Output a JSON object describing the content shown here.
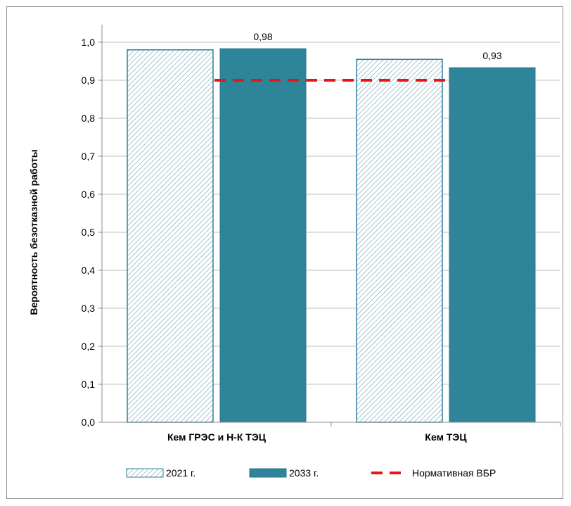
{
  "chart_data": {
    "type": "bar",
    "categories": [
      "Кем ГРЭС и Н-К ТЭЦ",
      "Кем ТЭЦ"
    ],
    "series": [
      {
        "name": "2021 г.",
        "values": [
          0.98,
          0.955
        ],
        "data_labels": [
          "",
          ""
        ],
        "style": "hatched"
      },
      {
        "name": "2033 г.",
        "values": [
          0.983,
          0.933
        ],
        "data_labels": [
          "0,98",
          "0,93"
        ],
        "style": "solid"
      }
    ],
    "reference_line": {
      "name": "Нормативная ВБР",
      "value": 0.9,
      "color": "#e8141b",
      "style": "dashed"
    },
    "ylabel": "Вероятность безотказной работы",
    "xlabel": "",
    "ylim": [
      0,
      1.0
    ],
    "y_ticks": [
      "0,0",
      "0,1",
      "0,2",
      "0,3",
      "0,4",
      "0,5",
      "0,6",
      "0,7",
      "0,8",
      "0,9",
      "1,0"
    ],
    "grid": true,
    "legend_position": "bottom",
    "colors": {
      "series_2021_stroke": "#2e8499",
      "series_2033_fill": "#2e8499",
      "grid": "#bfbfbf"
    }
  }
}
